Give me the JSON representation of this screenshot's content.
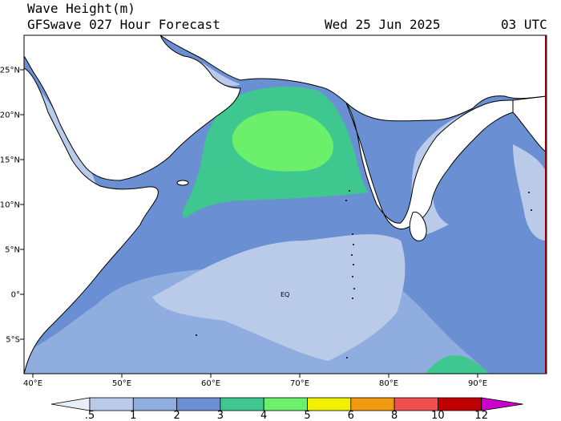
{
  "header": {
    "title": "Wave Height(m)",
    "subtitle": "GFSwave 027 Hour Forecast",
    "date": "Wed 25 Jun 2025",
    "time": "03 UTC"
  },
  "map": {
    "lon_range": [
      37,
      95
    ],
    "lat_range": [
      -9,
      29
    ],
    "lon_ticks": [
      "40°E",
      "50°E",
      "60°E",
      "70°E",
      "80°E",
      "90°E"
    ],
    "lat_ticks": [
      "25°N",
      "20°N",
      "15°N",
      "10°N",
      "5°N",
      "0°",
      "5°S"
    ],
    "equator_label": "EQ",
    "max_wave_height_region": "Arabian Sea, 4–5 m"
  },
  "colorbar": {
    "labels": [
      ".5",
      "1",
      "2",
      "3",
      "4",
      "5",
      "6",
      "8",
      "10",
      "12"
    ],
    "colors": [
      "#e8eef8",
      "#b9cbe9",
      "#8fadde",
      "#6a8fd2",
      "#3ec88f",
      "#6cf06c",
      "#f0f000",
      "#f09a10",
      "#f04f4f",
      "#c00000",
      "#cc00cc"
    ]
  },
  "colors": {
    "land": "#ffffff",
    "coast": "#000000",
    "sea_lt1": "#b9cbe9",
    "sea_1_2": "#8fadde",
    "sea_2_3": "#6a8fd2",
    "sea_3_4": "#3ec88f",
    "sea_4_5": "#6cf06c"
  }
}
